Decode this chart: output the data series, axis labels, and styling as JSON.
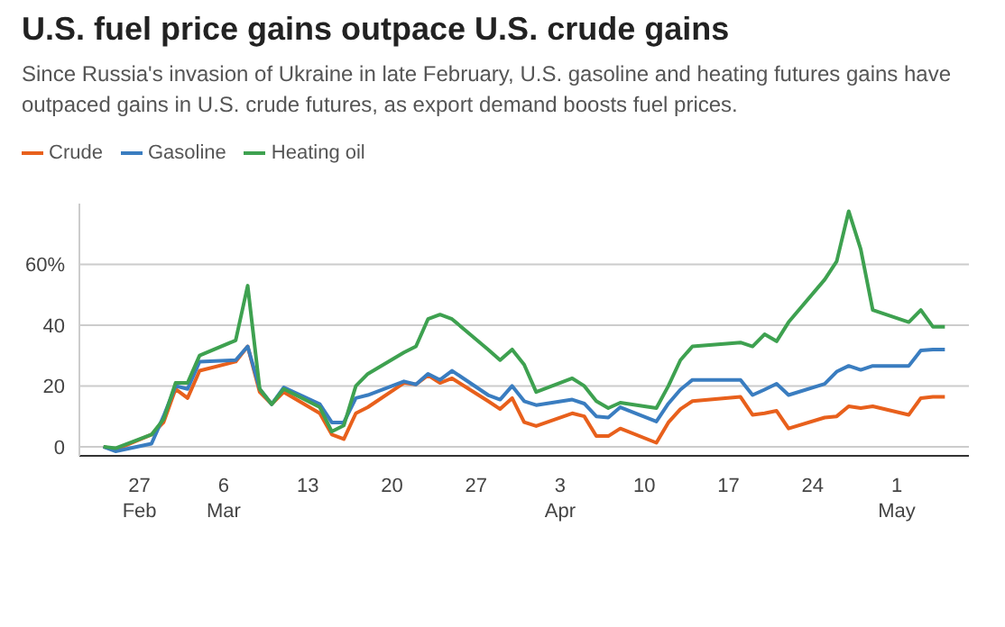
{
  "chart_data": {
    "type": "line",
    "title": "U.S. fuel price gains outpace U.S. crude gains",
    "subtitle": "Since Russia's invasion of Ukraine in late February, U.S. gasoline and heating futures gains have outpaced gains in U.S. crude futures, as export demand boosts fuel prices.",
    "x": [
      "--02-24",
      "--02-25",
      "--02-28",
      "--03-01",
      "--03-02",
      "--03-03",
      "--03-04",
      "--03-07",
      "--03-08",
      "--03-09",
      "--03-10",
      "--03-11",
      "--03-14",
      "--03-15",
      "--03-16",
      "--03-17",
      "--03-18",
      "--03-21",
      "--03-22",
      "--03-23",
      "--03-24",
      "--03-25",
      "--03-28",
      "--03-29",
      "--03-30",
      "--03-31",
      "--04-01",
      "--04-04",
      "--04-05",
      "--04-06",
      "--04-07",
      "--04-08",
      "--04-11",
      "--04-12",
      "--04-13",
      "--04-14",
      "--04-18",
      "--04-19",
      "--04-20",
      "--04-21",
      "--04-22",
      "--04-25",
      "--04-26",
      "--04-27",
      "--04-28",
      "--04-29",
      "--05-02",
      "--05-03",
      "--05-04",
      "--05-05"
    ],
    "series": [
      {
        "name": "Crude",
        "color": "#e8601c",
        "values": [
          0,
          -1,
          4,
          8,
          19,
          16,
          25,
          28,
          33,
          18,
          14,
          18,
          11,
          4,
          2.5,
          11,
          13,
          21,
          20.5,
          23.5,
          21,
          22.5,
          15,
          12.4,
          16,
          8.1,
          6.8,
          11,
          10,
          3.5,
          3.5,
          6,
          1.3,
          8,
          12.4,
          15,
          16.4,
          10.5,
          11,
          11.8,
          6,
          9.6,
          10,
          13.3,
          12.7,
          13.3,
          10.5,
          16,
          16.4,
          16.4
        ]
      },
      {
        "name": "Gasoline",
        "color": "#3a7dc0",
        "values": [
          0,
          -1.5,
          1,
          10,
          20,
          19,
          28,
          28.5,
          33,
          19,
          14,
          19.5,
          14,
          8,
          8,
          16,
          17,
          21.5,
          20.5,
          24,
          22,
          25,
          17,
          15.5,
          20,
          15,
          13.7,
          15.5,
          14.2,
          10,
          9.6,
          13,
          8.3,
          14.2,
          18.8,
          22,
          22,
          17,
          18.8,
          20.7,
          17,
          20.7,
          24.7,
          26.6,
          25.3,
          26.6,
          26.6,
          31.7,
          32,
          32
        ]
      },
      {
        "name": "Heating oil",
        "color": "#3ea150",
        "values": [
          0,
          -0.5,
          4,
          9,
          21,
          21,
          30,
          35,
          53,
          19,
          14,
          19,
          13,
          5,
          7,
          20,
          24,
          31,
          33,
          42,
          43.5,
          42,
          32,
          28.5,
          32,
          27,
          18,
          22.5,
          20,
          15,
          12.7,
          14.5,
          12.7,
          20,
          28.5,
          33,
          34.3,
          33,
          37,
          34.7,
          41,
          55,
          61,
          77.5,
          65,
          45,
          41,
          45,
          39.5,
          39.5
        ]
      }
    ],
    "xlim": [
      "--02-22",
      "--05-07"
    ],
    "xticks": [
      {
        "value": "--02-27",
        "label": "27\nFeb"
      },
      {
        "value": "--03-06",
        "label": "6\nMar"
      },
      {
        "value": "--03-13",
        "label": "13"
      },
      {
        "value": "--03-20",
        "label": "20"
      },
      {
        "value": "--03-27",
        "label": "27"
      },
      {
        "value": "--04-03",
        "label": "3\nApr"
      },
      {
        "value": "--04-10",
        "label": "10"
      },
      {
        "value": "--04-17",
        "label": "17"
      },
      {
        "value": "--04-24",
        "label": "24"
      },
      {
        "value": "--05-01",
        "label": "1\nMay"
      }
    ],
    "ylim": [
      -3,
      80
    ],
    "yticks": [
      0,
      20,
      40,
      {
        "value": 60,
        "label": "60%"
      }
    ],
    "grid": "y",
    "legend": "top left",
    "marker": "none",
    "line_style": "solid"
  }
}
